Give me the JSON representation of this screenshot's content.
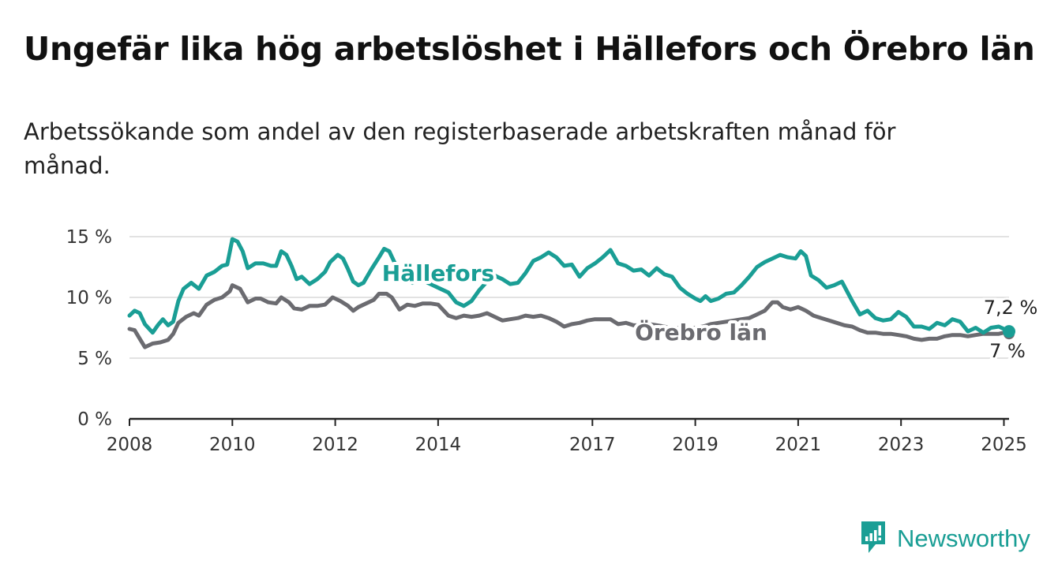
{
  "title": "Ungefär lika hög arbetslöshet i Hällefors och Örebro län",
  "subtitle": "Arbetssökande som andel av den registerbaserade arbetskraften månad för månad.",
  "brand": {
    "name": "Newsworthy"
  },
  "colors": {
    "hallefors": "#1a9e95",
    "orebro": "#6b6b70",
    "axis": "#222222",
    "grid": "#d9d9d9",
    "brand": "#1a9e95"
  },
  "chart_data": {
    "type": "line",
    "title": "",
    "xlabel": "",
    "ylabel": "",
    "xlim": [
      2008.0,
      2025.1
    ],
    "ylim": [
      0,
      15
    ],
    "y_ticks": [
      0,
      5,
      10,
      15
    ],
    "y_tick_labels": [
      "0 %",
      "5 %",
      "10 %",
      "15 %"
    ],
    "x_ticks": [
      2008,
      2010,
      2012,
      2014,
      2017,
      2019,
      2021,
      2023,
      2025
    ],
    "x_tick_labels": [
      "2008",
      "2010",
      "2012",
      "2014",
      "2017",
      "2019",
      "2021",
      "2023",
      "2025"
    ],
    "grid": true,
    "series": [
      {
        "name": "Hällefors",
        "end_label": "7,2 %",
        "points": [
          [
            2008.0,
            8.5
          ],
          [
            2008.1,
            8.9
          ],
          [
            2008.2,
            8.7
          ],
          [
            2008.3,
            7.8
          ],
          [
            2008.45,
            7.1
          ],
          [
            2008.55,
            7.7
          ],
          [
            2008.65,
            8.2
          ],
          [
            2008.75,
            7.7
          ],
          [
            2008.85,
            8.0
          ],
          [
            2008.95,
            9.7
          ],
          [
            2009.05,
            10.7
          ],
          [
            2009.2,
            11.2
          ],
          [
            2009.35,
            10.7
          ],
          [
            2009.5,
            11.8
          ],
          [
            2009.65,
            12.1
          ],
          [
            2009.8,
            12.6
          ],
          [
            2009.9,
            12.7
          ],
          [
            2010.0,
            14.8
          ],
          [
            2010.1,
            14.6
          ],
          [
            2010.2,
            13.8
          ],
          [
            2010.3,
            12.4
          ],
          [
            2010.45,
            12.8
          ],
          [
            2010.6,
            12.8
          ],
          [
            2010.75,
            12.6
          ],
          [
            2010.85,
            12.6
          ],
          [
            2010.95,
            13.8
          ],
          [
            2011.05,
            13.5
          ],
          [
            2011.15,
            12.6
          ],
          [
            2011.25,
            11.5
          ],
          [
            2011.35,
            11.7
          ],
          [
            2011.5,
            11.1
          ],
          [
            2011.65,
            11.5
          ],
          [
            2011.8,
            12.1
          ],
          [
            2011.9,
            12.9
          ],
          [
            2012.05,
            13.5
          ],
          [
            2012.15,
            13.2
          ],
          [
            2012.25,
            12.3
          ],
          [
            2012.35,
            11.3
          ],
          [
            2012.45,
            11.0
          ],
          [
            2012.55,
            11.2
          ],
          [
            2012.7,
            12.3
          ],
          [
            2012.85,
            13.3
          ],
          [
            2012.95,
            14.0
          ],
          [
            2013.05,
            13.8
          ],
          [
            2013.15,
            12.9
          ],
          [
            2013.3,
            12.0
          ],
          [
            2013.5,
            11.2
          ],
          [
            2013.65,
            11.6
          ],
          [
            2013.8,
            11.2
          ],
          [
            2014.0,
            10.8
          ],
          [
            2014.2,
            10.4
          ],
          [
            2014.35,
            9.6
          ],
          [
            2014.5,
            9.3
          ],
          [
            2014.65,
            9.7
          ],
          [
            2014.8,
            10.6
          ],
          [
            2014.95,
            11.3
          ],
          [
            2015.1,
            11.8
          ],
          [
            2015.25,
            11.5
          ],
          [
            2015.4,
            11.1
          ],
          [
            2015.55,
            11.2
          ],
          [
            2015.7,
            12.0
          ],
          [
            2015.85,
            13.0
          ],
          [
            2016.0,
            13.3
          ],
          [
            2016.15,
            13.7
          ],
          [
            2016.3,
            13.3
          ],
          [
            2016.45,
            12.6
          ],
          [
            2016.6,
            12.7
          ],
          [
            2016.75,
            11.7
          ],
          [
            2016.9,
            12.4
          ],
          [
            2017.05,
            12.8
          ],
          [
            2017.2,
            13.3
          ],
          [
            2017.35,
            13.9
          ],
          [
            2017.5,
            12.8
          ],
          [
            2017.65,
            12.6
          ],
          [
            2017.8,
            12.2
          ],
          [
            2017.95,
            12.3
          ],
          [
            2018.1,
            11.8
          ],
          [
            2018.25,
            12.4
          ],
          [
            2018.4,
            11.9
          ],
          [
            2018.55,
            11.7
          ],
          [
            2018.7,
            10.8
          ],
          [
            2018.85,
            10.3
          ],
          [
            2019.0,
            9.9
          ],
          [
            2019.1,
            9.7
          ],
          [
            2019.2,
            10.1
          ],
          [
            2019.3,
            9.7
          ],
          [
            2019.45,
            9.9
          ],
          [
            2019.6,
            10.3
          ],
          [
            2019.75,
            10.4
          ],
          [
            2019.9,
            11.0
          ],
          [
            2020.05,
            11.7
          ],
          [
            2020.2,
            12.5
          ],
          [
            2020.35,
            12.9
          ],
          [
            2020.5,
            13.2
          ],
          [
            2020.65,
            13.5
          ],
          [
            2020.8,
            13.3
          ],
          [
            2020.95,
            13.2
          ],
          [
            2021.05,
            13.8
          ],
          [
            2021.15,
            13.4
          ],
          [
            2021.25,
            11.8
          ],
          [
            2021.4,
            11.4
          ],
          [
            2021.55,
            10.8
          ],
          [
            2021.7,
            11.0
          ],
          [
            2021.85,
            11.3
          ],
          [
            2021.95,
            10.5
          ],
          [
            2022.05,
            9.7
          ],
          [
            2022.2,
            8.6
          ],
          [
            2022.35,
            8.9
          ],
          [
            2022.5,
            8.3
          ],
          [
            2022.65,
            8.1
          ],
          [
            2022.8,
            8.2
          ],
          [
            2022.95,
            8.8
          ],
          [
            2023.1,
            8.4
          ],
          [
            2023.25,
            7.6
          ],
          [
            2023.4,
            7.6
          ],
          [
            2023.55,
            7.4
          ],
          [
            2023.7,
            7.9
          ],
          [
            2023.85,
            7.7
          ],
          [
            2024.0,
            8.2
          ],
          [
            2024.15,
            8.0
          ],
          [
            2024.3,
            7.2
          ],
          [
            2024.45,
            7.5
          ],
          [
            2024.6,
            7.1
          ],
          [
            2024.75,
            7.5
          ],
          [
            2024.9,
            7.6
          ],
          [
            2025.0,
            7.4
          ],
          [
            2025.1,
            7.2
          ]
        ]
      },
      {
        "name": "Örebro län",
        "end_label": "7 %",
        "points": [
          [
            2008.0,
            7.4
          ],
          [
            2008.1,
            7.3
          ],
          [
            2008.2,
            6.6
          ],
          [
            2008.3,
            5.9
          ],
          [
            2008.45,
            6.2
          ],
          [
            2008.6,
            6.3
          ],
          [
            2008.75,
            6.5
          ],
          [
            2008.85,
            7.0
          ],
          [
            2008.95,
            7.9
          ],
          [
            2009.1,
            8.4
          ],
          [
            2009.25,
            8.7
          ],
          [
            2009.35,
            8.5
          ],
          [
            2009.5,
            9.4
          ],
          [
            2009.65,
            9.8
          ],
          [
            2009.8,
            10.0
          ],
          [
            2009.95,
            10.5
          ],
          [
            2010.0,
            11.0
          ],
          [
            2010.15,
            10.7
          ],
          [
            2010.3,
            9.6
          ],
          [
            2010.45,
            9.9
          ],
          [
            2010.55,
            9.9
          ],
          [
            2010.7,
            9.6
          ],
          [
            2010.85,
            9.5
          ],
          [
            2010.95,
            10.0
          ],
          [
            2011.1,
            9.6
          ],
          [
            2011.2,
            9.1
          ],
          [
            2011.35,
            9.0
          ],
          [
            2011.5,
            9.3
          ],
          [
            2011.65,
            9.3
          ],
          [
            2011.8,
            9.4
          ],
          [
            2011.95,
            10.0
          ],
          [
            2012.1,
            9.7
          ],
          [
            2012.25,
            9.3
          ],
          [
            2012.35,
            8.9
          ],
          [
            2012.45,
            9.2
          ],
          [
            2012.6,
            9.5
          ],
          [
            2012.75,
            9.8
          ],
          [
            2012.85,
            10.3
          ],
          [
            2013.0,
            10.3
          ],
          [
            2013.1,
            10.0
          ],
          [
            2013.25,
            9.0
          ],
          [
            2013.4,
            9.4
          ],
          [
            2013.55,
            9.3
          ],
          [
            2013.7,
            9.5
          ],
          [
            2013.85,
            9.5
          ],
          [
            2014.0,
            9.4
          ],
          [
            2014.2,
            8.5
          ],
          [
            2014.35,
            8.3
          ],
          [
            2014.5,
            8.5
          ],
          [
            2014.65,
            8.4
          ],
          [
            2014.8,
            8.5
          ],
          [
            2014.95,
            8.7
          ],
          [
            2015.1,
            8.4
          ],
          [
            2015.25,
            8.1
          ],
          [
            2015.4,
            8.2
          ],
          [
            2015.55,
            8.3
          ],
          [
            2015.7,
            8.5
          ],
          [
            2015.85,
            8.4
          ],
          [
            2016.0,
            8.5
          ],
          [
            2016.15,
            8.3
          ],
          [
            2016.3,
            8.0
          ],
          [
            2016.45,
            7.6
          ],
          [
            2016.6,
            7.8
          ],
          [
            2016.75,
            7.9
          ],
          [
            2016.9,
            8.1
          ],
          [
            2017.05,
            8.2
          ],
          [
            2017.2,
            8.2
          ],
          [
            2017.35,
            8.2
          ],
          [
            2017.5,
            7.8
          ],
          [
            2017.65,
            7.9
          ],
          [
            2017.8,
            7.7
          ],
          [
            2017.95,
            7.7
          ],
          [
            2018.1,
            7.8
          ],
          [
            2018.25,
            7.7
          ],
          [
            2018.4,
            7.6
          ],
          [
            2018.55,
            7.4
          ],
          [
            2018.7,
            7.5
          ],
          [
            2018.85,
            7.4
          ],
          [
            2019.0,
            7.5
          ],
          [
            2019.15,
            7.6
          ],
          [
            2019.3,
            7.8
          ],
          [
            2019.45,
            7.9
          ],
          [
            2019.6,
            8.0
          ],
          [
            2019.75,
            8.1
          ],
          [
            2019.9,
            8.2
          ],
          [
            2020.05,
            8.3
          ],
          [
            2020.2,
            8.6
          ],
          [
            2020.35,
            8.9
          ],
          [
            2020.5,
            9.6
          ],
          [
            2020.6,
            9.6
          ],
          [
            2020.7,
            9.2
          ],
          [
            2020.85,
            9.0
          ],
          [
            2021.0,
            9.2
          ],
          [
            2021.15,
            8.9
          ],
          [
            2021.3,
            8.5
          ],
          [
            2021.45,
            8.3
          ],
          [
            2021.6,
            8.1
          ],
          [
            2021.75,
            7.9
          ],
          [
            2021.9,
            7.7
          ],
          [
            2022.05,
            7.6
          ],
          [
            2022.2,
            7.3
          ],
          [
            2022.35,
            7.1
          ],
          [
            2022.5,
            7.1
          ],
          [
            2022.65,
            7.0
          ],
          [
            2022.8,
            7.0
          ],
          [
            2022.95,
            6.9
          ],
          [
            2023.1,
            6.8
          ],
          [
            2023.25,
            6.6
          ],
          [
            2023.4,
            6.5
          ],
          [
            2023.55,
            6.6
          ],
          [
            2023.7,
            6.6
          ],
          [
            2023.85,
            6.8
          ],
          [
            2024.0,
            6.9
          ],
          [
            2024.15,
            6.9
          ],
          [
            2024.3,
            6.8
          ],
          [
            2024.45,
            6.9
          ],
          [
            2024.6,
            7.0
          ],
          [
            2024.75,
            7.0
          ],
          [
            2024.9,
            7.0
          ],
          [
            2025.0,
            7.1
          ],
          [
            2025.1,
            7.0
          ]
        ]
      }
    ]
  }
}
